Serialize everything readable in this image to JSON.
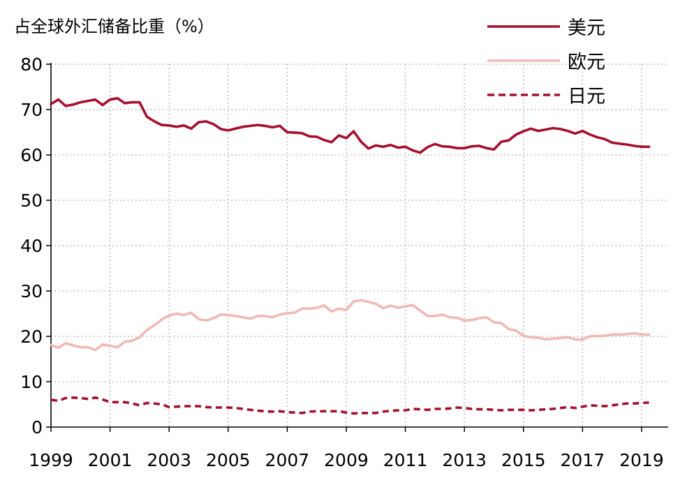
{
  "chart_data": {
    "type": "line",
    "ylabel": "占全球外汇储备比重（%）",
    "xlabel": "",
    "ylim": [
      0,
      80
    ],
    "xlim": [
      1999.0,
      2019.9
    ],
    "y_ticks": [
      "0",
      "10",
      "20",
      "30",
      "40",
      "50",
      "60",
      "70",
      "80"
    ],
    "x_ticks": [
      "1999",
      "2001",
      "2003",
      "2005",
      "2007",
      "2009",
      "2011",
      "2013",
      "2015",
      "2017",
      "2019"
    ],
    "grid": "dotted",
    "legend_position": "top-right",
    "series": [
      {
        "name": "美元",
        "color": "#a50f2d",
        "style": "solid",
        "x": [
          1999.0,
          1999.25,
          1999.5,
          1999.75,
          2000.0,
          2000.25,
          2000.5,
          2000.75,
          2001.0,
          2001.25,
          2001.5,
          2001.75,
          2002.0,
          2002.25,
          2002.5,
          2002.75,
          2003.0,
          2003.25,
          2003.5,
          2003.75,
          2004.0,
          2004.25,
          2004.5,
          2004.75,
          2005.0,
          2005.25,
          2005.5,
          2005.75,
          2006.0,
          2006.25,
          2006.5,
          2006.75,
          2007.0,
          2007.25,
          2007.5,
          2007.75,
          2008.0,
          2008.25,
          2008.5,
          2008.75,
          2009.0,
          2009.25,
          2009.5,
          2009.75,
          2010.0,
          2010.25,
          2010.5,
          2010.75,
          2011.0,
          2011.25,
          2011.5,
          2011.75,
          2012.0,
          2012.25,
          2012.5,
          2012.75,
          2013.0,
          2013.25,
          2013.5,
          2013.75,
          2014.0,
          2014.25,
          2014.5,
          2014.75,
          2015.0,
          2015.25,
          2015.5,
          2015.75,
          2016.0,
          2016.25,
          2016.5,
          2016.75,
          2017.0,
          2017.25,
          2017.5,
          2017.75,
          2018.0,
          2018.25,
          2018.5,
          2018.75,
          2019.0,
          2019.25
        ],
        "y": [
          71.2,
          72.2,
          70.8,
          71.1,
          71.6,
          71.9,
          72.2,
          71.0,
          72.2,
          72.5,
          71.4,
          71.6,
          71.6,
          68.4,
          67.4,
          66.6,
          66.5,
          66.2,
          66.5,
          65.8,
          67.2,
          67.4,
          66.8,
          65.7,
          65.4,
          65.8,
          66.2,
          66.4,
          66.6,
          66.4,
          66.1,
          66.4,
          65.0,
          64.9,
          64.8,
          64.1,
          64.0,
          63.3,
          62.8,
          64.3,
          63.7,
          65.2,
          62.9,
          61.4,
          62.1,
          61.8,
          62.2,
          61.6,
          61.8,
          61.0,
          60.5,
          61.7,
          62.4,
          61.9,
          61.8,
          61.5,
          61.5,
          61.9,
          62.0,
          61.5,
          61.2,
          62.9,
          63.2,
          64.5,
          65.2,
          65.8,
          65.3,
          65.6,
          65.9,
          65.7,
          65.3,
          64.7,
          65.3,
          64.5,
          63.9,
          63.5,
          62.7,
          62.5,
          62.3,
          62.0,
          61.8,
          61.8
        ]
      },
      {
        "name": "欧元",
        "color": "#f0b9b4",
        "style": "solid",
        "x": [
          1999.0,
          1999.25,
          1999.5,
          1999.75,
          2000.0,
          2000.25,
          2000.5,
          2000.75,
          2001.0,
          2001.25,
          2001.5,
          2001.75,
          2002.0,
          2002.25,
          2002.5,
          2002.75,
          2003.0,
          2003.25,
          2003.5,
          2003.75,
          2004.0,
          2004.25,
          2004.5,
          2004.75,
          2005.0,
          2005.25,
          2005.5,
          2005.75,
          2006.0,
          2006.25,
          2006.5,
          2006.75,
          2007.0,
          2007.25,
          2007.5,
          2007.75,
          2008.0,
          2008.25,
          2008.5,
          2008.75,
          2009.0,
          2009.25,
          2009.5,
          2009.75,
          2010.0,
          2010.25,
          2010.5,
          2010.75,
          2011.0,
          2011.25,
          2011.5,
          2011.75,
          2012.0,
          2012.25,
          2012.5,
          2012.75,
          2013.0,
          2013.25,
          2013.5,
          2013.75,
          2014.0,
          2014.25,
          2014.5,
          2014.75,
          2015.0,
          2015.25,
          2015.5,
          2015.75,
          2016.0,
          2016.25,
          2016.5,
          2016.75,
          2017.0,
          2017.25,
          2017.5,
          2017.75,
          2018.0,
          2018.25,
          2018.5,
          2018.75,
          2019.0,
          2019.25
        ],
        "y": [
          18.1,
          17.5,
          18.5,
          18.0,
          17.6,
          17.6,
          17.0,
          18.2,
          17.9,
          17.6,
          18.8,
          19.0,
          19.8,
          21.4,
          22.4,
          23.7,
          24.6,
          25.0,
          24.7,
          25.2,
          23.8,
          23.5,
          24.0,
          24.8,
          24.7,
          24.5,
          24.2,
          23.9,
          24.5,
          24.5,
          24.2,
          24.8,
          25.1,
          25.2,
          26.1,
          26.1,
          26.3,
          26.8,
          25.5,
          26.1,
          25.8,
          27.7,
          28.0,
          27.6,
          27.2,
          26.2,
          26.8,
          26.3,
          26.6,
          26.9,
          25.7,
          24.5,
          24.5,
          24.8,
          24.2,
          24.1,
          23.5,
          23.6,
          24.0,
          24.2,
          23.1,
          22.9,
          21.6,
          21.3,
          20.1,
          19.8,
          19.7,
          19.3,
          19.5,
          19.6,
          19.8,
          19.3,
          19.3,
          20.0,
          20.1,
          20.1,
          20.4,
          20.4,
          20.5,
          20.7,
          20.4,
          20.4
        ]
      },
      {
        "name": "日元",
        "color": "#a50f2d",
        "style": "dashed",
        "x": [
          1999.0,
          1999.25,
          1999.5,
          1999.75,
          2000.0,
          2000.25,
          2000.5,
          2000.75,
          2001.0,
          2001.25,
          2001.5,
          2001.75,
          2002.0,
          2002.25,
          2002.5,
          2002.75,
          2003.0,
          2003.25,
          2003.5,
          2003.75,
          2004.0,
          2004.25,
          2004.5,
          2004.75,
          2005.0,
          2005.25,
          2005.5,
          2005.75,
          2006.0,
          2006.25,
          2006.5,
          2006.75,
          2007.0,
          2007.25,
          2007.5,
          2007.75,
          2008.0,
          2008.25,
          2008.5,
          2008.75,
          2009.0,
          2009.25,
          2009.5,
          2009.75,
          2010.0,
          2010.25,
          2010.5,
          2010.75,
          2011.0,
          2011.25,
          2011.5,
          2011.75,
          2012.0,
          2012.25,
          2012.5,
          2012.75,
          2013.0,
          2013.25,
          2013.5,
          2013.75,
          2014.0,
          2014.25,
          2014.5,
          2014.75,
          2015.0,
          2015.25,
          2015.5,
          2015.75,
          2016.0,
          2016.25,
          2016.5,
          2016.75,
          2017.0,
          2017.25,
          2017.5,
          2017.75,
          2018.0,
          2018.25,
          2018.5,
          2018.75,
          2019.0,
          2019.25
        ],
        "y": [
          6.0,
          5.8,
          6.4,
          6.5,
          6.4,
          6.2,
          6.5,
          6.1,
          5.5,
          5.5,
          5.5,
          5.2,
          4.8,
          5.3,
          5.2,
          5.0,
          4.4,
          4.5,
          4.6,
          4.6,
          4.6,
          4.4,
          4.3,
          4.3,
          4.3,
          4.2,
          4.0,
          3.8,
          3.6,
          3.5,
          3.4,
          3.5,
          3.3,
          3.2,
          3.1,
          3.4,
          3.5,
          3.5,
          3.5,
          3.5,
          3.2,
          3.0,
          3.1,
          3.1,
          3.1,
          3.4,
          3.6,
          3.7,
          3.7,
          4.0,
          3.9,
          3.8,
          4.0,
          4.0,
          4.1,
          4.3,
          4.2,
          4.0,
          3.9,
          3.9,
          3.8,
          3.7,
          3.8,
          3.8,
          3.8,
          3.7,
          3.8,
          3.9,
          4.0,
          4.2,
          4.4,
          4.2,
          4.5,
          4.8,
          4.7,
          4.6,
          4.8,
          5.0,
          5.2,
          5.2,
          5.3,
          5.4
        ]
      }
    ]
  }
}
